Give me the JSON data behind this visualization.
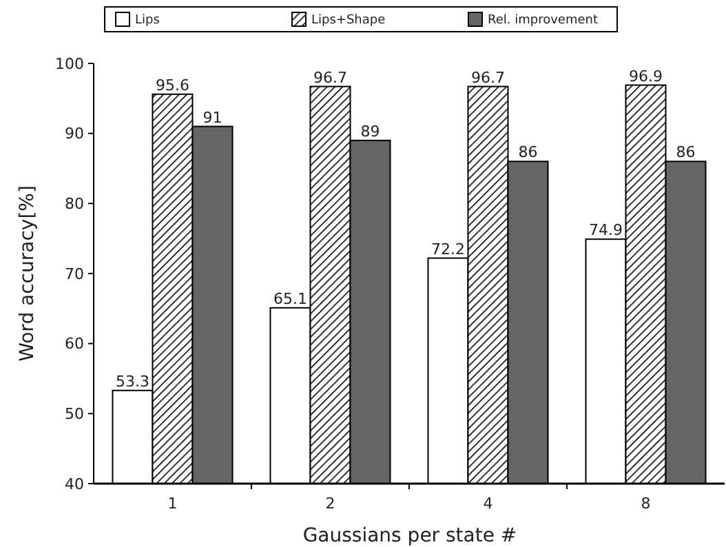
{
  "chart_data": {
    "type": "bar",
    "xlabel": "Gaussians per state #",
    "ylabel": "Word accuracy[%]",
    "categories": [
      "1",
      "2",
      "4",
      "8"
    ],
    "series": [
      {
        "name": "Lips",
        "color": "#ffffff",
        "values": [
          53.3,
          65.1,
          72.2,
          74.9
        ]
      },
      {
        "name": "Lips+Shape",
        "color": "#000000",
        "values": [
          95.6,
          96.7,
          96.7,
          96.9
        ]
      },
      {
        "name": "Rel. improvement",
        "color": "#666666",
        "values": [
          91,
          89,
          86,
          86
        ]
      }
    ],
    "ylim": [
      40,
      100
    ],
    "yticks": [
      40,
      50,
      60,
      70,
      80,
      90,
      100
    ],
    "data_labels": true,
    "legend": "top",
    "grid": false
  }
}
